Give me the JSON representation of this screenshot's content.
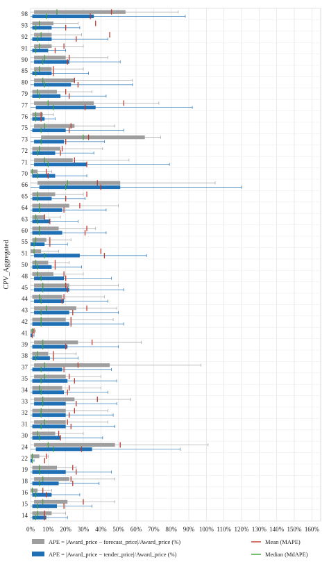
{
  "chart_data": {
    "type": "boxplot",
    "ylabel": "CPV_Aggregated",
    "xlabel": "",
    "xlim": [
      0,
      165
    ],
    "x_ticks": [
      "0%",
      "10%",
      "20%",
      "30%",
      "40%",
      "50%",
      "60%",
      "70%",
      "80%",
      "90%",
      "100%",
      "110%",
      "120%",
      "130%",
      "140%",
      "150%",
      "160%"
    ],
    "grid": true,
    "categories": [
      "98",
      "93",
      "92",
      "91",
      "90",
      "85",
      "80",
      "79",
      "77",
      "76",
      "75",
      "73",
      "72",
      "71",
      "70",
      "66",
      "65",
      "64",
      "63",
      "60",
      "55",
      "51",
      "50",
      "48",
      "45",
      "44",
      "43",
      "42",
      "41",
      "39",
      "38",
      "37",
      "35",
      "34",
      "33",
      "32",
      "31",
      "30",
      "24",
      "22",
      "19",
      "18",
      "16",
      "15",
      "14"
    ],
    "series": [
      {
        "name": "APE = |Award_price − forecast_price|/Award_price (%)",
        "color": "#9e9e9e",
        "boxes": [
          {
            "whisker_low": 0,
            "q1": 2,
            "median": 15,
            "q3": 54,
            "whisker_high": 84,
            "mean": 46
          },
          {
            "whisker_low": 0,
            "q1": 1,
            "median": 5,
            "q3": 13,
            "whisker_high": 27,
            "mean": 37
          },
          {
            "whisker_low": 0,
            "q1": 2,
            "median": 6,
            "q3": 12,
            "whisker_high": 29,
            "mean": 45
          },
          {
            "whisker_low": 0,
            "q1": 2,
            "median": 5,
            "q3": 12,
            "whisker_high": 30,
            "mean": 19
          },
          {
            "whisker_low": 0,
            "q1": 2,
            "median": 8,
            "q3": 20,
            "whisker_high": 44,
            "mean": 22
          },
          {
            "whisker_low": 0,
            "q1": 2,
            "median": 5,
            "q3": 12,
            "whisker_high": 30,
            "mean": 13
          },
          {
            "whisker_low": 0,
            "q1": 2,
            "median": 7,
            "q3": 25,
            "whisker_high": 58,
            "mean": 25
          },
          {
            "whisker_low": 0,
            "q1": 1,
            "median": 4,
            "q3": 15,
            "whisker_high": 35,
            "mean": 20
          },
          {
            "whisker_low": 0,
            "q1": 2,
            "median": 10,
            "q3": 36,
            "whisker_high": 73,
            "mean": 53
          },
          {
            "whisker_low": 0,
            "q1": 1,
            "median": 3,
            "q3": 7,
            "whisker_high": 13,
            "mean": 6
          },
          {
            "whisker_low": 0,
            "q1": 2,
            "median": 8,
            "q3": 25,
            "whisker_high": 48,
            "mean": 23
          },
          {
            "whisker_low": 0,
            "q1": 6,
            "median": 30,
            "q3": 65,
            "whisker_high": 74,
            "mean": 33
          },
          {
            "whisker_low": 0,
            "q1": 1,
            "median": 5,
            "q3": 17,
            "whisker_high": 41,
            "mean": 18
          },
          {
            "whisker_low": 0,
            "q1": 2,
            "median": 8,
            "q3": 24,
            "whisker_high": 56,
            "mean": 25
          },
          {
            "whisker_low": 0,
            "q1": 0,
            "median": 1,
            "q3": 4,
            "whisker_high": 12,
            "mean": 9
          },
          {
            "whisker_low": 0,
            "q1": 4,
            "median": 21,
            "q3": 51,
            "whisker_high": 105,
            "mean": 38
          },
          {
            "whisker_low": 0,
            "q1": 1,
            "median": 4,
            "q3": 14,
            "whisker_high": 30,
            "mean": 32
          },
          {
            "whisker_low": 0,
            "q1": 1,
            "median": 5,
            "q3": 22,
            "whisker_high": 50,
            "mean": 28
          },
          {
            "whisker_low": 0,
            "q1": 1,
            "median": 3,
            "q3": 8,
            "whisker_high": 17,
            "mean": 8
          },
          {
            "whisker_low": 0,
            "q1": 1,
            "median": 5,
            "q3": 16,
            "whisker_high": 37,
            "mean": 32
          },
          {
            "whisker_low": 0,
            "q1": 1,
            "median": 3,
            "q3": 9,
            "whisker_high": 23,
            "mean": 11
          },
          {
            "whisker_low": 0,
            "q1": 0,
            "median": 2,
            "q3": 6,
            "whisker_high": 16,
            "mean": 40
          },
          {
            "whisker_low": 0,
            "q1": 1,
            "median": 3,
            "q3": 10,
            "whisker_high": 22,
            "mean": 14
          },
          {
            "whisker_low": 0,
            "q1": 1,
            "median": 4,
            "q3": 13,
            "whisker_high": 30,
            "mean": 19
          },
          {
            "whisker_low": 0,
            "q1": 2,
            "median": 7,
            "q3": 22,
            "whisker_high": 50,
            "mean": 20
          },
          {
            "whisker_low": 0,
            "q1": 1,
            "median": 5,
            "q3": 18,
            "whisker_high": 42,
            "mean": 19
          },
          {
            "whisker_low": 0,
            "q1": 2,
            "median": 9,
            "q3": 26,
            "whisker_high": 49,
            "mean": 32
          },
          {
            "whisker_low": 0,
            "q1": 1,
            "median": 6,
            "q3": 20,
            "whisker_high": 47,
            "mean": 23
          },
          {
            "whisker_low": 0,
            "q1": 0,
            "median": 1,
            "q3": 2,
            "whisker_high": 3,
            "mean": 2
          },
          {
            "whisker_low": 0,
            "q1": 2,
            "median": 7,
            "q3": 27,
            "whisker_high": 63,
            "mean": 35
          },
          {
            "whisker_low": 0,
            "q1": 1,
            "median": 4,
            "q3": 10,
            "whisker_high": 26,
            "mean": 13
          },
          {
            "whisker_low": 0,
            "q1": 2,
            "median": 8,
            "q3": 45,
            "whisker_high": 97,
            "mean": 27
          },
          {
            "whisker_low": 0,
            "q1": 2,
            "median": 8,
            "q3": 20,
            "whisker_high": 40,
            "mean": 22
          },
          {
            "whisker_low": 0,
            "q1": 1,
            "median": 5,
            "q3": 18,
            "whisker_high": 40,
            "mean": 22
          },
          {
            "whisker_low": 0,
            "q1": 2,
            "median": 7,
            "q3": 25,
            "whisker_high": 57,
            "mean": 38
          },
          {
            "whisker_low": 0,
            "q1": 1,
            "median": 6,
            "q3": 20,
            "whisker_high": 44,
            "mean": 25
          },
          {
            "whisker_low": 0,
            "q1": 2,
            "median": 8,
            "q3": 20,
            "whisker_high": 44,
            "mean": 21
          },
          {
            "whisker_low": 0,
            "q1": 1,
            "median": 4,
            "q3": 14,
            "whisker_high": 30,
            "mean": 16
          },
          {
            "whisker_low": 0,
            "q1": 2,
            "median": 10,
            "q3": 48,
            "whisker_high": 101,
            "mean": 51
          },
          {
            "whisker_low": 0,
            "q1": 0,
            "median": 1,
            "q3": 5,
            "whisker_high": 10,
            "mean": 9
          },
          {
            "whisker_low": 0,
            "q1": 1,
            "median": 5,
            "q3": 15,
            "whisker_high": 26,
            "mean": 24
          },
          {
            "whisker_low": 0,
            "q1": 2,
            "median": 7,
            "q3": 22,
            "whisker_high": 48,
            "mean": 23
          },
          {
            "whisker_low": 0,
            "q1": 0,
            "median": 1,
            "q3": 4,
            "whisker_high": 12,
            "mean": 7
          },
          {
            "whisker_low": 0,
            "q1": 2,
            "median": 7,
            "q3": 21,
            "whisker_high": 48,
            "mean": 30
          },
          {
            "whisker_low": 0,
            "q1": 1,
            "median": 4,
            "q3": 12,
            "whisker_high": 20,
            "mean": 8
          }
        ]
      },
      {
        "name": "APE = |Award_price − tender_price|/Award_price (%)",
        "color": "#1f6fb4",
        "boxes": [
          {
            "whisker_low": 0,
            "q1": 1,
            "median": 9,
            "q3": 36,
            "whisker_high": 88,
            "mean": 34
          },
          {
            "whisker_low": 0,
            "q1": 1,
            "median": 3,
            "q3": 12,
            "whisker_high": 28,
            "mean": 20
          },
          {
            "whisker_low": 0,
            "q1": 1,
            "median": 4,
            "q3": 12,
            "whisker_high": 44,
            "mean": 26
          },
          {
            "whisker_low": 0,
            "q1": 1,
            "median": 3,
            "q3": 10,
            "whisker_high": 20,
            "mean": 14
          },
          {
            "whisker_low": 0,
            "q1": 2,
            "median": 7,
            "q3": 22,
            "whisker_high": 51,
            "mean": 21
          },
          {
            "whisker_low": 0,
            "q1": 1,
            "median": 3,
            "q3": 12,
            "whisker_high": 33,
            "mean": 13
          },
          {
            "whisker_low": 0,
            "q1": 2,
            "median": 8,
            "q3": 23,
            "whisker_high": 58,
            "mean": 27
          },
          {
            "whisker_low": 0,
            "q1": 1,
            "median": 5,
            "q3": 17,
            "whisker_high": 43,
            "mean": 22
          },
          {
            "whisker_low": 0,
            "q1": 3,
            "median": 13,
            "q3": 37,
            "whisker_high": 92,
            "mean": 31
          },
          {
            "whisker_low": 0,
            "q1": 1,
            "median": 3,
            "q3": 8,
            "whisker_high": 14,
            "mean": 6
          },
          {
            "whisker_low": 0,
            "q1": 1,
            "median": 6,
            "q3": 20,
            "whisker_high": 53,
            "mean": 22
          },
          {
            "whisker_low": 0,
            "q1": 2,
            "median": 6,
            "q3": 19,
            "whisker_high": 42,
            "mean": 20
          },
          {
            "whisker_low": 0,
            "q1": 1,
            "median": 4,
            "q3": 14,
            "whisker_high": 36,
            "mean": 17
          },
          {
            "whisker_low": 0,
            "q1": 2,
            "median": 10,
            "q3": 32,
            "whisker_high": 79,
            "mean": 32
          },
          {
            "whisker_low": 0,
            "q1": 1,
            "median": 4,
            "q3": 14,
            "whisker_high": 32,
            "mean": 10
          },
          {
            "whisker_low": 0,
            "q1": 5,
            "median": 20,
            "q3": 51,
            "whisker_high": 120,
            "mean": 40
          },
          {
            "whisker_low": 0,
            "q1": 1,
            "median": 4,
            "q3": 12,
            "whisker_high": 31,
            "mean": 20
          },
          {
            "whisker_low": 0,
            "q1": 1,
            "median": 5,
            "q3": 18,
            "whisker_high": 43,
            "mean": 19
          },
          {
            "whisker_low": 0,
            "q1": 1,
            "median": 4,
            "q3": 11,
            "whisker_high": 27,
            "mean": 11
          },
          {
            "whisker_low": 0,
            "q1": 1,
            "median": 5,
            "q3": 18,
            "whisker_high": 43,
            "mean": 31
          },
          {
            "whisker_low": 0,
            "q1": 0,
            "median": 2,
            "q3": 8,
            "whisker_high": 21,
            "mean": 11
          },
          {
            "whisker_low": 0,
            "q1": 2,
            "median": 8,
            "q3": 28,
            "whisker_high": 66,
            "mean": 42
          },
          {
            "whisker_low": 0,
            "q1": 1,
            "median": 4,
            "q3": 12,
            "whisker_high": 29,
            "mean": 14
          },
          {
            "whisker_low": 0,
            "q1": 2,
            "median": 6,
            "q3": 19,
            "whisker_high": 46,
            "mean": 20
          },
          {
            "whisker_low": 0,
            "q1": 2,
            "median": 7,
            "q3": 22,
            "whisker_high": 53,
            "mean": 21
          },
          {
            "whisker_low": 0,
            "q1": 2,
            "median": 6,
            "q3": 19,
            "whisker_high": 44,
            "mean": 18
          },
          {
            "whisker_low": 0,
            "q1": 2,
            "median": 6,
            "q3": 22,
            "whisker_high": 50,
            "mean": 24
          },
          {
            "whisker_low": 0,
            "q1": 1,
            "median": 6,
            "q3": 22,
            "whisker_high": 53,
            "mean": 23
          },
          {
            "whisker_low": 0,
            "q1": 0,
            "median": 1,
            "q3": 1,
            "whisker_high": 2,
            "mean": 1
          },
          {
            "whisker_low": 0,
            "q1": 1,
            "median": 7,
            "q3": 21,
            "whisker_high": 50,
            "mean": 20
          },
          {
            "whisker_low": 0,
            "q1": 1,
            "median": 3,
            "q3": 11,
            "whisker_high": 27,
            "mean": 13
          },
          {
            "whisker_low": 0,
            "q1": 1,
            "median": 6,
            "q3": 18,
            "whisker_high": 46,
            "mean": 19
          },
          {
            "whisker_low": 0,
            "q1": 1,
            "median": 6,
            "q3": 21,
            "whisker_high": 49,
            "mean": 25
          },
          {
            "whisker_low": 0,
            "q1": 1,
            "median": 6,
            "q3": 19,
            "whisker_high": 44,
            "mean": 21
          },
          {
            "whisker_low": 0,
            "q1": 2,
            "median": 7,
            "q3": 20,
            "whisker_high": 49,
            "mean": 26
          },
          {
            "whisker_low": 0,
            "q1": 1,
            "median": 6,
            "q3": 20,
            "whisker_high": 47,
            "mean": 22
          },
          {
            "whisker_low": 0,
            "q1": 1,
            "median": 6,
            "q3": 20,
            "whisker_high": 48,
            "mean": 23
          },
          {
            "whisker_low": 0,
            "q1": 1,
            "median": 5,
            "q3": 17,
            "whisker_high": 41,
            "mean": 17
          },
          {
            "whisker_low": 0,
            "q1": 3,
            "median": 13,
            "q3": 35,
            "whisker_high": 85,
            "mean": 29
          },
          {
            "whisker_low": 0,
            "q1": 0,
            "median": 1,
            "q3": 1,
            "whisker_high": 2,
            "mean": 8
          },
          {
            "whisker_low": 0,
            "q1": 1,
            "median": 5,
            "q3": 20,
            "whisker_high": 46,
            "mean": 26
          },
          {
            "whisker_low": 0,
            "q1": 1,
            "median": 5,
            "q3": 16,
            "whisker_high": 39,
            "mean": 24
          },
          {
            "whisker_low": 0,
            "q1": 1,
            "median": 3,
            "q3": 12,
            "whisker_high": 28,
            "mean": 9
          },
          {
            "whisker_low": 0,
            "q1": 1,
            "median": 4,
            "q3": 15,
            "whisker_high": 35,
            "mean": 19
          },
          {
            "whisker_low": 0,
            "q1": 1,
            "median": 3,
            "q3": 9,
            "whisker_high": 21,
            "mean": 8
          }
        ]
      }
    ],
    "mean_marker": {
      "name": "Mean (MAPE)",
      "color": "#c0392b"
    },
    "median_marker": {
      "name": "Median (MdAPE)",
      "color": "#3aa335"
    },
    "legend_position": "bottom"
  }
}
